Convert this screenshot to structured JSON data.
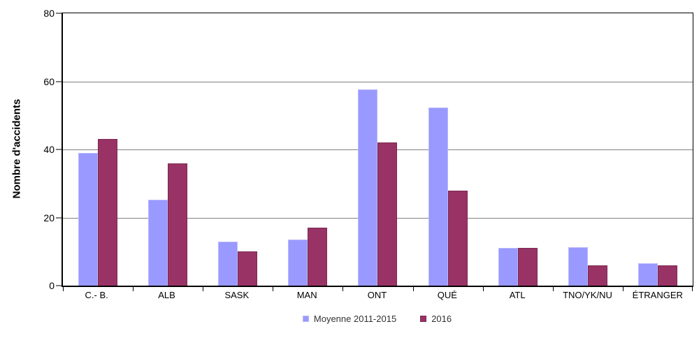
{
  "chart_data": {
    "type": "bar",
    "title": "",
    "ylabel": "Nombre d'accidents",
    "xlabel": "",
    "ylim": [
      0,
      80
    ],
    "yticks": [
      0,
      20,
      40,
      60,
      80
    ],
    "grid": true,
    "legend_position": "bottom",
    "categories": [
      "C.- B.",
      "ALB",
      "SASK",
      "MAN",
      "ONT",
      "QUÉ",
      "ATL",
      "TNO/YK/NU",
      "ÉTRANGER"
    ],
    "series": [
      {
        "name": "Moyenne 2011-2015",
        "color": "#9999FF",
        "border_color": "#B9B9FB",
        "values": [
          39,
          25.2,
          13,
          13.6,
          57.6,
          52.4,
          11,
          11.2,
          6.6
        ]
      },
      {
        "name": "2016",
        "color": "#993366",
        "border_color": "#7B2952",
        "values": [
          43,
          36,
          10,
          17,
          42,
          28,
          11,
          6,
          6
        ]
      }
    ],
    "colors": {
      "gridline": "#808080",
      "axis": "#000000",
      "background": "#FFFFFF"
    }
  }
}
